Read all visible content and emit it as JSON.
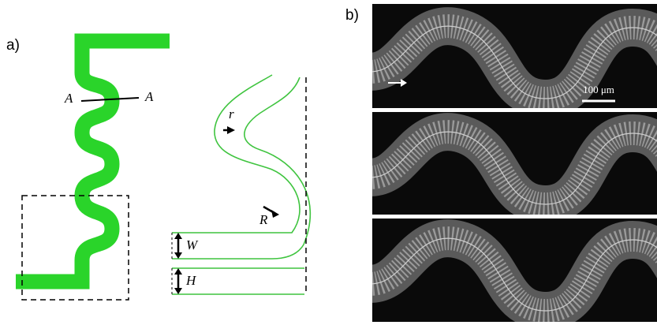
{
  "panel_a": {
    "label": "a)",
    "section_labels": [
      "A",
      "A"
    ],
    "radius_small": "r",
    "radius_large": "R",
    "width": "W",
    "height": "H"
  },
  "panel_b": {
    "label": "b)",
    "scale_bar": "100 μm"
  }
}
